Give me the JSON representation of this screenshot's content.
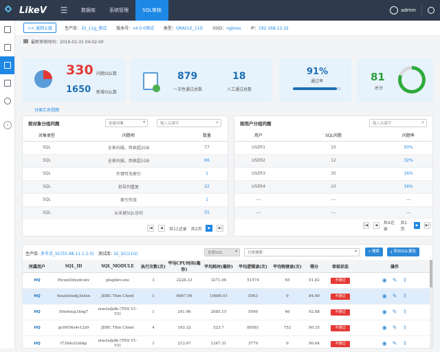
{
  "app": {
    "name": "LikeV"
  },
  "nav": [
    {
      "label": "数据库"
    },
    {
      "label": "系统管理"
    },
    {
      "label": "SQL审核"
    }
  ],
  "user": {
    "name": "admin"
  },
  "crumb": {
    "back": "<< 返回上层",
    "items": [
      {
        "k": "生产库：",
        "v": "32_11g_测试"
      },
      {
        "k": "版本号：",
        "v": "v4.0.0测试"
      },
      {
        "k": "类型：",
        "v": "ORACLE_11G"
      },
      {
        "k": "SSID：",
        "v": "ngboss"
      },
      {
        "k": "IP：",
        "v": "192.168.12.32"
      }
    ]
  },
  "last_audit": "最新审核时间：2016-01-31 04:02:00",
  "cards": {
    "problem_sql": "330",
    "problem_sql_label": "问题SQL数",
    "new_sql": "1650",
    "new_sql_label": "新增SQL数",
    "one_pass": "879",
    "one_pass_label": "一次性通过总数",
    "manual_pass": "18",
    "manual_pass_label": "人工通过总数",
    "pass_rate": "91%",
    "pass_rate_label": "通过率",
    "pass_rate_value": 0.91,
    "score": "81",
    "score_label": "总分",
    "score_value": 0.81
  },
  "summary_link": "分类汇总视图",
  "by_object": {
    "title": "按对象分组问题",
    "select": "全部对象",
    "search_placeholder": "输入关键字",
    "headers": [
      "对象类型",
      "问题项",
      "数量"
    ],
    "rows": [
      [
        "SQL",
        "全表扫描，但表超2GB",
        "77"
      ],
      [
        "SQL",
        "全表扫描，但表超1GB",
        "66"
      ],
      [
        "SQL",
        "外键可无索引",
        "1"
      ],
      [
        "SQL",
        "前导列重复",
        "22"
      ],
      [
        "SQL",
        "索引失效",
        "1"
      ],
      [
        "SQL",
        "从未被SQL访问",
        "55"
      ]
    ],
    "pager": {
      "text": "共11记录",
      "page": "共2页"
    }
  },
  "by_user": {
    "title": "按用户分组问题",
    "search_placeholder": "输入关键字",
    "headers": [
      "用户",
      "SQL问题",
      "问题率"
    ],
    "rows": [
      [
        "USER1",
        "10",
        "50%"
      ],
      [
        "USER2",
        "12",
        "32%"
      ],
      [
        "USER3",
        "30",
        "16%"
      ],
      [
        "USER4",
        "10",
        "16%"
      ],
      [
        "---",
        "---",
        "---"
      ],
      [
        "---",
        "---",
        "---"
      ]
    ],
    "pager": {
      "text": "共4记录",
      "page": "共1页"
    }
  },
  "detail": {
    "prod_label": "生产库:",
    "prod_value": "多节点_SC(55.98.11.1:1:5)",
    "test_label": "测试库:",
    "test_value": "32_SC(11G)",
    "select1": "全部SQL",
    "select2": "分类搜索",
    "search_btn": "搜索",
    "export_btn": "导出SQL报告",
    "headers": [
      "所属用户",
      "SQL_ID",
      "SQL_MODULE",
      "执行次数(次)",
      "平均CPU时间(毫秒)",
      "平均耗时(毫秒)",
      "平均逻辑读(次)",
      "平均物理读(次)",
      "得分",
      "审核状态",
      "操作"
    ],
    "rows": [
      [
        "HQ",
        "f5yuni5dyzdcskv",
        "plsqldev.exe",
        "3",
        "2228.33",
        "3271.00",
        "51574",
        "65",
        "91.82",
        "不通过"
      ],
      [
        "HQ",
        "4xszlz5nzkj3x4zn",
        "JDBC Thin Client",
        "1",
        "6667.99",
        "19880.01",
        "5563",
        "0",
        "84.99",
        "不通过"
      ],
      [
        "HQ",
        "59x4nxzj1hng7",
        "oracle@db (TNS V1-V3)",
        "1",
        "241.96",
        "2085.15",
        "5096",
        "46",
        "92.88",
        "不通过"
      ],
      [
        "HQ",
        "gcfr056s4v12z9",
        "JDBC Thin Client",
        "4",
        "193.22",
        "523.7",
        "89581",
        "752",
        "90.35",
        "不通过"
      ],
      [
        "HQ",
        "f7394u1tzbkp",
        "oracle@db (TNS V1-V3)",
        "1",
        "213.97",
        "1247.31",
        "3779",
        "0",
        "90.84",
        "不通过"
      ]
    ]
  }
}
